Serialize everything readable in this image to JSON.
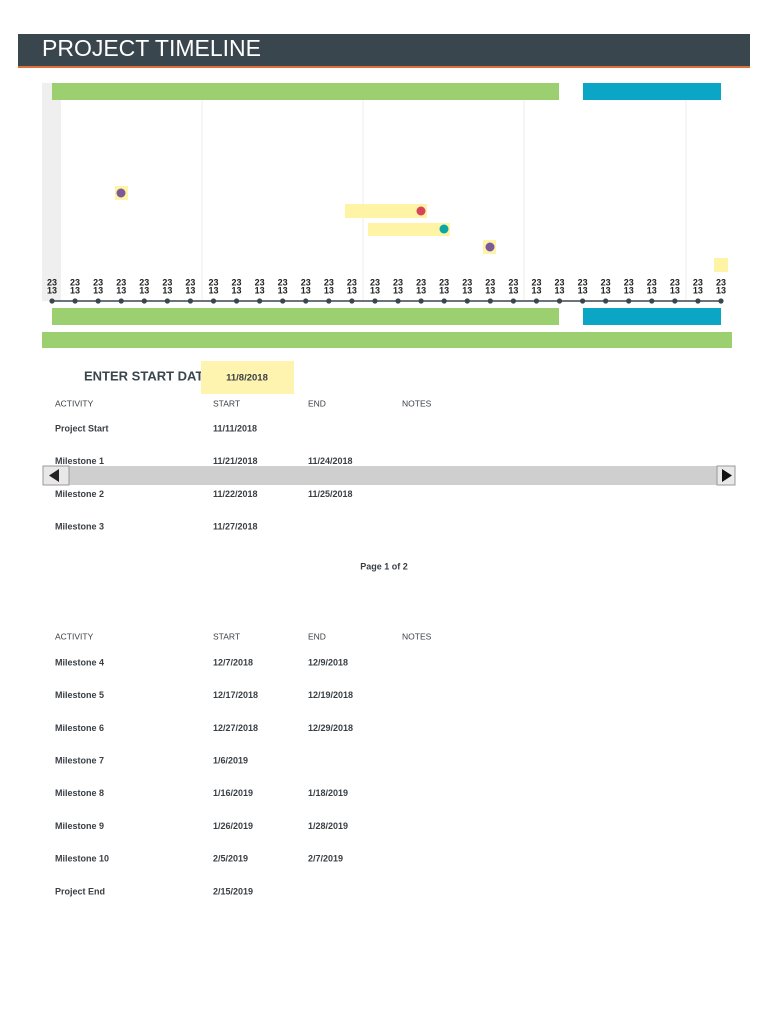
{
  "header": {
    "title": "PROJECT TIMELINE"
  },
  "timeline": {
    "axis_labels": [
      [
        "23",
        "13"
      ],
      [
        "23",
        "13"
      ],
      [
        "23",
        "13"
      ],
      [
        "23",
        "13"
      ],
      [
        "23",
        "13"
      ],
      [
        "23",
        "13"
      ],
      [
        "23",
        "13"
      ],
      [
        "23",
        "13"
      ],
      [
        "23",
        "13"
      ],
      [
        "23",
        "13"
      ],
      [
        "23",
        "13"
      ],
      [
        "23",
        "13"
      ],
      [
        "23",
        "13"
      ],
      [
        "23",
        "13"
      ],
      [
        "23",
        "13"
      ],
      [
        "23",
        "13"
      ],
      [
        "23",
        "13"
      ],
      [
        "23",
        "13"
      ],
      [
        "23",
        "13"
      ],
      [
        "23",
        "13"
      ],
      [
        "23",
        "13"
      ],
      [
        "23",
        "13"
      ],
      [
        "23",
        "13"
      ],
      [
        "23",
        "13"
      ],
      [
        "23",
        "13"
      ],
      [
        "23",
        "13"
      ],
      [
        "23",
        "13"
      ],
      [
        "23",
        "13"
      ],
      [
        "23",
        "13"
      ],
      [
        "23",
        "13"
      ]
    ]
  },
  "start_date": {
    "label": "ENTER START DATE:",
    "value": "11/8/2018"
  },
  "tables": [
    {
      "headers": [
        "ACTIVITY",
        "START",
        "END",
        "NOTES"
      ],
      "rows": [
        [
          "Project Start",
          "11/11/2018"
        ],
        [
          "Milestone 1",
          "11/21/2018",
          "11/24/2018"
        ],
        [
          "Milestone 2",
          "11/22/2018",
          "11/25/2018"
        ],
        [
          "Milestone 3",
          "11/27/2018"
        ]
      ]
    },
    {
      "headers": [
        "ACTIVITY",
        "START",
        "END",
        "NOTES"
      ],
      "rows": [
        [
          "Milestone 4",
          "12/7/2018",
          "12/9/2018"
        ],
        [
          "Milestone 5",
          "12/17/2018",
          "12/19/2018"
        ],
        [
          "Milestone 6",
          "12/27/2018",
          "12/29/2018"
        ],
        [
          "Milestone 7",
          "1/6/2019"
        ],
        [
          "Milestone 8",
          "1/16/2019",
          "1/18/2019"
        ],
        [
          "Milestone 9",
          "1/26/2019",
          "1/28/2019"
        ],
        [
          "Milestone 10",
          "2/5/2019",
          "2/7/2019"
        ],
        [
          "Project End",
          "2/15/2019"
        ]
      ]
    }
  ],
  "footer": {
    "page": "Page 1 of 2"
  }
}
